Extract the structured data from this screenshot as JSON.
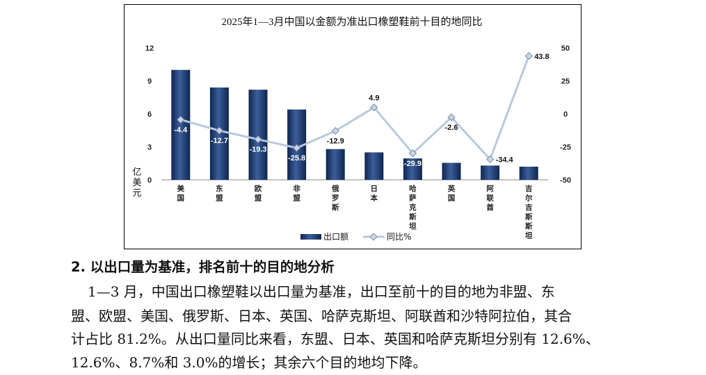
{
  "chart_data": {
    "type": "bar",
    "title": "2025年1—3月中国以金额为准出口橡塑鞋前十目的地同比",
    "ylabel_left": "亿美元",
    "ylim_left": [
      0,
      12
    ],
    "yticks_left": [
      0,
      3,
      6,
      9,
      12
    ],
    "ylim_right": [
      -50,
      50
    ],
    "yticks_right": [
      -50,
      -25,
      0,
      25,
      50
    ],
    "categories": [
      "美国",
      "东盟",
      "欧盟",
      "非盟",
      "俄罗斯",
      "日本",
      "哈萨克斯坦",
      "英国",
      "阿联酋",
      "吉尔吉斯斯坦"
    ],
    "series": [
      {
        "name": "出口额",
        "kind": "bar",
        "axis": "left",
        "color": "#1f3d73",
        "values": [
          10.0,
          8.4,
          8.2,
          6.4,
          2.8,
          2.5,
          1.95,
          1.55,
          1.3,
          1.2
        ]
      },
      {
        "name": "同比%",
        "kind": "line",
        "axis": "right",
        "color": "#b8c9dd",
        "values": [
          -4.4,
          -12.7,
          -19.3,
          -25.8,
          -12.9,
          4.9,
          -29.9,
          -2.6,
          -34.4,
          43.8
        ],
        "labels": [
          "-4.4",
          "-12.7",
          "-19.3",
          "-25.8",
          "-12.9",
          "4.9",
          "-29.9",
          "-2.6",
          "-34.4",
          "43.8"
        ]
      }
    ],
    "legend_position": "bottom",
    "grid": false
  },
  "text": {
    "heading": "2. 以出口量为基准，排名前十的目的地分析",
    "lines": [
      "1—3 月，中国出口橡塑鞋以出口量为基准，出口至前十的目的地为非盟、东",
      "盟、欧盟、美国、俄罗斯、日本、英国、哈萨克斯坦、阿联酋和沙特阿拉伯，其合",
      "计占比 81.2%。从出口量同比来看，东盟、日本、英国和哈萨克斯坦分别有 12.6%、",
      "12.6%、8.7%和 3.0%的增长；其余六个目的地均下降。"
    ]
  }
}
